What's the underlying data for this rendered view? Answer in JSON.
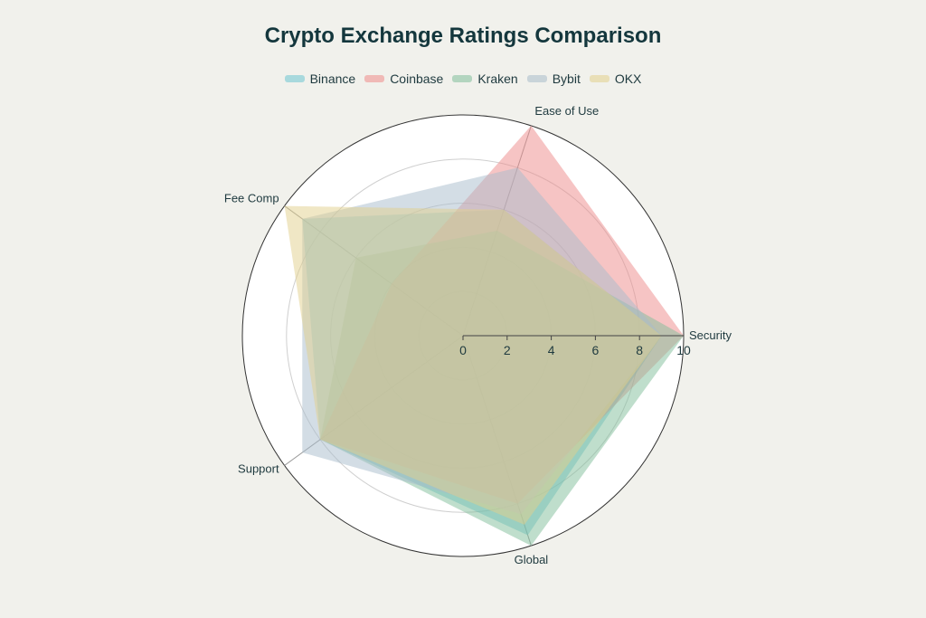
{
  "chart_data": {
    "type": "radar",
    "title": "Crypto Exchange Ratings Comparison",
    "axes": [
      "Security",
      "Ease of Use",
      "Fee Comp",
      "Support",
      "Global"
    ],
    "rlim": [
      0,
      10
    ],
    "ticks": [
      "0",
      "2",
      "4",
      "6",
      "8",
      "10"
    ],
    "legend_position": "top-center",
    "series": [
      {
        "name": "Binance",
        "color": "#6cc4d1",
        "values": [
          9,
          6,
          9,
          8,
          9.5
        ]
      },
      {
        "name": "Coinbase",
        "color": "#ee8a8a",
        "values": [
          10,
          10,
          4,
          8,
          8
        ]
      },
      {
        "name": "Kraken",
        "color": "#7fbd9a",
        "values": [
          10,
          5,
          6,
          8,
          10
        ]
      },
      {
        "name": "Bybit",
        "color": "#a8bccb",
        "values": [
          9,
          8,
          9,
          9,
          8.5
        ]
      },
      {
        "name": "OKX",
        "color": "#e2d08c",
        "values": [
          9,
          6,
          10,
          8,
          9
        ]
      }
    ]
  }
}
